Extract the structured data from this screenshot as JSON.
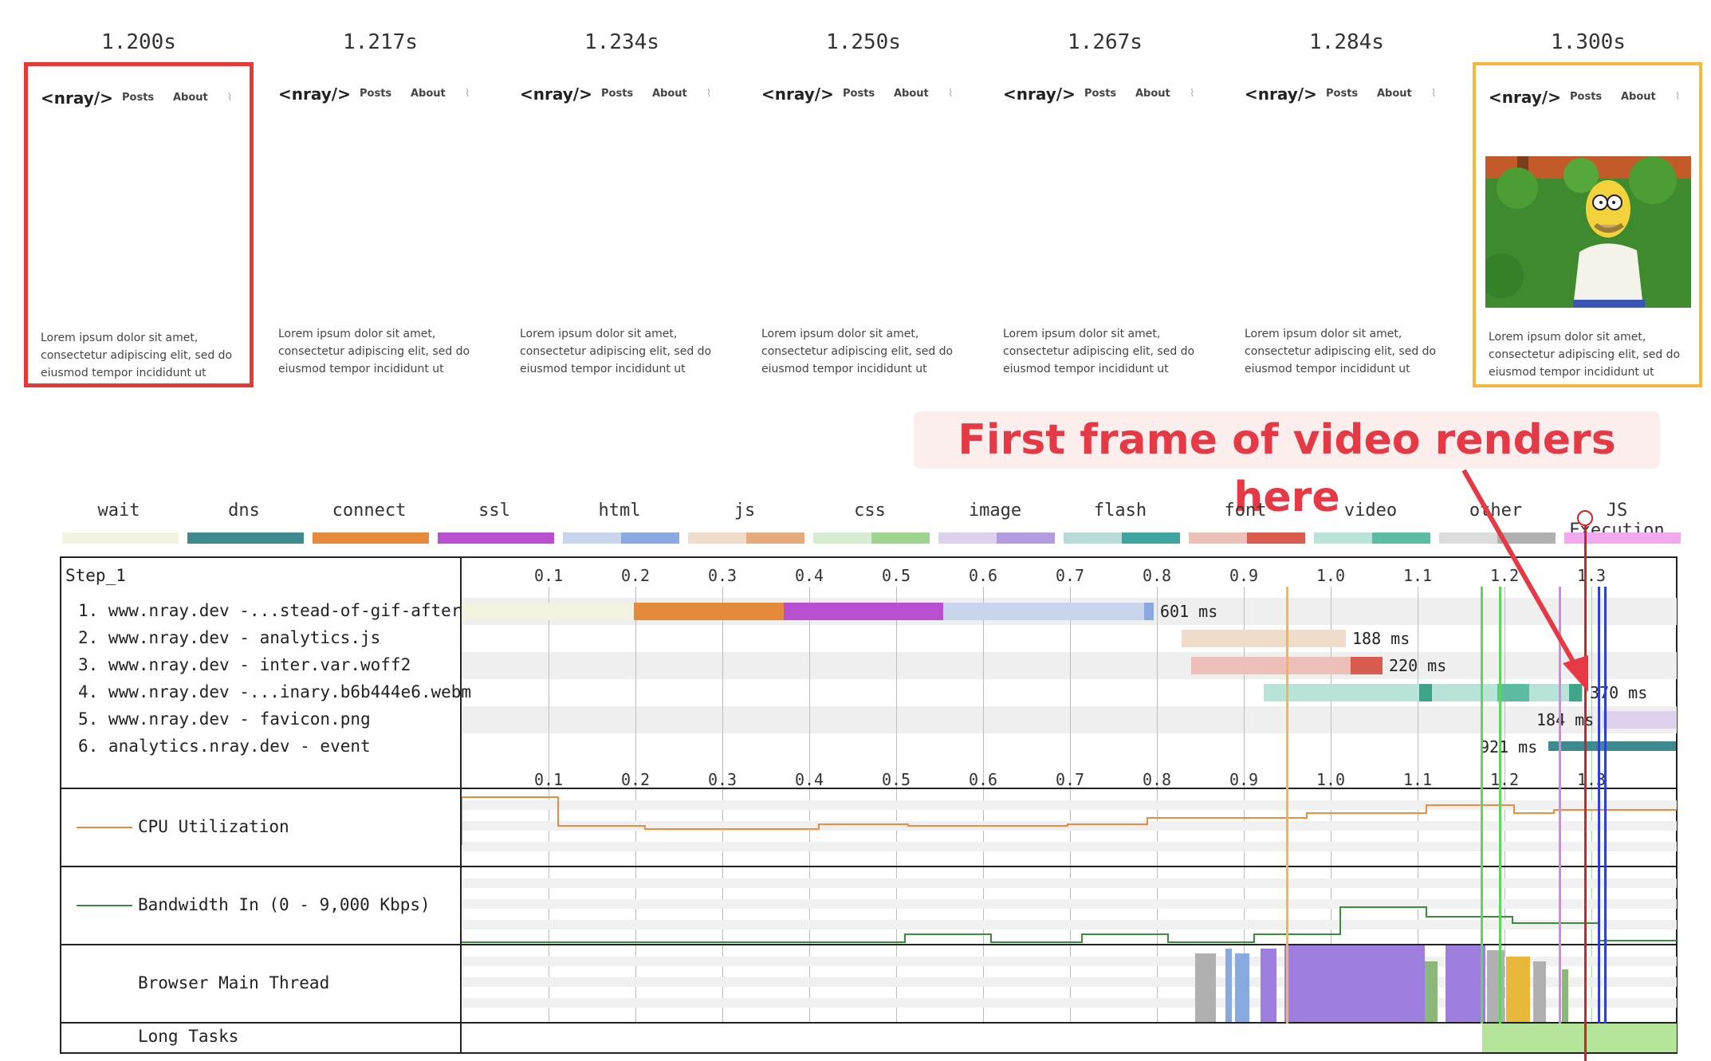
{
  "filmstrip": {
    "frames": [
      {
        "time": "1.200s",
        "logo": "<nray/>",
        "nav_posts": "Posts",
        "nav_about": "About",
        "lorem": [
          "Lorem ipsum dolor sit amet,",
          "consectetur adipiscing elit, sed do",
          "eiusmod tempor incididunt ut"
        ],
        "has_image": false,
        "highlight": "red"
      },
      {
        "time": "1.217s",
        "logo": "<nray/>",
        "nav_posts": "Posts",
        "nav_about": "About",
        "lorem": [
          "Lorem ipsum dolor sit amet,",
          "consectetur adipiscing elit, sed do",
          "eiusmod tempor incididunt ut"
        ],
        "has_image": false,
        "highlight": "none"
      },
      {
        "time": "1.234s",
        "logo": "<nray/>",
        "nav_posts": "Posts",
        "nav_about": "About",
        "lorem": [
          "Lorem ipsum dolor sit amet,",
          "consectetur adipiscing elit, sed do",
          "eiusmod tempor incididunt ut"
        ],
        "has_image": false,
        "highlight": "none"
      },
      {
        "time": "1.250s",
        "logo": "<nray/>",
        "nav_posts": "Posts",
        "nav_about": "About",
        "lorem": [
          "Lorem ipsum dolor sit amet,",
          "consectetur adipiscing elit, sed do",
          "eiusmod tempor incididunt ut"
        ],
        "has_image": false,
        "highlight": "none"
      },
      {
        "time": "1.267s",
        "logo": "<nray/>",
        "nav_posts": "Posts",
        "nav_about": "About",
        "lorem": [
          "Lorem ipsum dolor sit amet,",
          "consectetur adipiscing elit, sed do",
          "eiusmod tempor incididunt ut"
        ],
        "has_image": false,
        "highlight": "none"
      },
      {
        "time": "1.284s",
        "logo": "<nray/>",
        "nav_posts": "Posts",
        "nav_about": "About",
        "lorem": [
          "Lorem ipsum dolor sit amet,",
          "consectetur adipiscing elit, sed do",
          "eiusmod tempor incididunt ut"
        ],
        "has_image": false,
        "highlight": "none"
      },
      {
        "time": "1.300s",
        "logo": "<nray/>",
        "nav_posts": "Posts",
        "nav_about": "About",
        "lorem": [
          "Lorem ipsum dolor sit amet,",
          "consectetur adipiscing elit, sed do",
          "eiusmod tempor incididunt ut"
        ],
        "has_image": true,
        "highlight": "orange"
      }
    ]
  },
  "callout": {
    "text": "First frame of video renders here"
  },
  "legend": [
    {
      "label": "wait",
      "colors": [
        "#f3f1df",
        "#f3f1df"
      ]
    },
    {
      "label": "dns",
      "colors": [
        "#3f8a8f",
        "#3f8a8f"
      ]
    },
    {
      "label": "connect",
      "colors": [
        "#e58a3b",
        "#e58a3b"
      ]
    },
    {
      "label": "ssl",
      "colors": [
        "#b84fd0",
        "#b84fd0"
      ]
    },
    {
      "label": "html",
      "colors": [
        "#c8d5ec",
        "#8aa9e0"
      ]
    },
    {
      "label": "js",
      "colors": [
        "#efdccb",
        "#e4ac7d"
      ]
    },
    {
      "label": "css",
      "colors": [
        "#d7ecd0",
        "#9fd48e"
      ]
    },
    {
      "label": "image",
      "colors": [
        "#dcd0ec",
        "#b39be0"
      ]
    },
    {
      "label": "flash",
      "colors": [
        "#b8ddd8",
        "#3fa3a0"
      ]
    },
    {
      "label": "font",
      "colors": [
        "#ecc0b8",
        "#d75c4e"
      ]
    },
    {
      "label": "video",
      "colors": [
        "#b9e2d8",
        "#5cbca2"
      ]
    },
    {
      "label": "other",
      "colors": [
        "#dcdcdc",
        "#b0b0b0"
      ]
    },
    {
      "label": "JS Execution",
      "colors": [
        "#f2a9f0",
        "#f2a9f0"
      ]
    }
  ],
  "waterfall": {
    "step": "Step_1",
    "ticks": [
      "0.1",
      "0.2",
      "0.3",
      "0.4",
      "0.5",
      "0.6",
      "0.7",
      "0.8",
      "0.9",
      "1.0",
      "1.1",
      "1.2",
      "1.3"
    ],
    "requests": [
      {
        "label": "1. www.nray.dev -...stead-of-gif-after/",
        "duration": "601 ms"
      },
      {
        "label": "2. www.nray.dev - analytics.js",
        "duration": "188 ms"
      },
      {
        "label": "3. www.nray.dev - inter.var.woff2",
        "duration": "220 ms"
      },
      {
        "label": "4. www.nray.dev -...inary.b6b444e6.webm",
        "duration": "370 ms"
      },
      {
        "label": "5. www.nray.dev - favicon.png",
        "duration": "184 ms"
      },
      {
        "label": "6. analytics.nray.dev - event",
        "duration": "921 ms"
      }
    ]
  },
  "metrics": {
    "cpu": "CPU Utilization",
    "bandwidth": "Bandwidth In (0 - 9,000 Kbps)",
    "main_thread": "Browser Main Thread",
    "long_tasks": "Long Tasks"
  },
  "colors": {
    "cpu": "#f08a3c",
    "bandwidth": "#3c8a3c",
    "marker": "#d22222"
  }
}
